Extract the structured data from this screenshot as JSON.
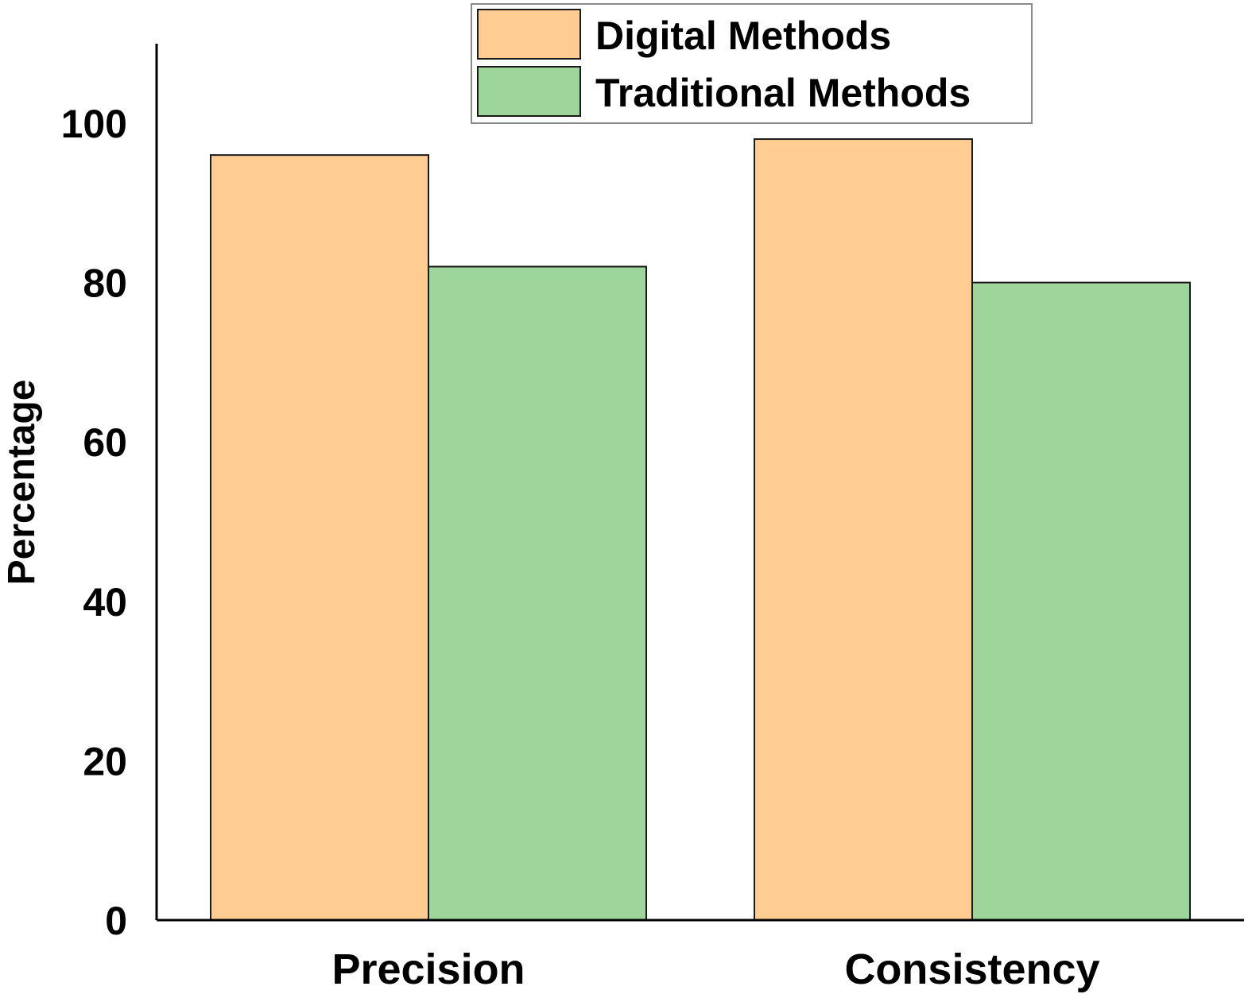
{
  "chart_data": {
    "type": "bar",
    "title": "",
    "xlabel": "",
    "ylabel": "Percentage",
    "categories": [
      "Precision",
      "Consistency"
    ],
    "series": [
      {
        "name": "Digital Methods",
        "values": [
          96,
          98
        ],
        "color": "#FFCC92"
      },
      {
        "name": "Traditional Methods",
        "values": [
          82,
          80
        ],
        "color": "#9DD59B"
      }
    ],
    "ylim": [
      0,
      110
    ],
    "yticks": [
      0,
      20,
      40,
      60,
      80,
      100
    ],
    "ytick_labels": [
      "0",
      "20",
      "40",
      "60",
      "80",
      "100"
    ],
    "grid": false,
    "legend_position": "top-center"
  }
}
